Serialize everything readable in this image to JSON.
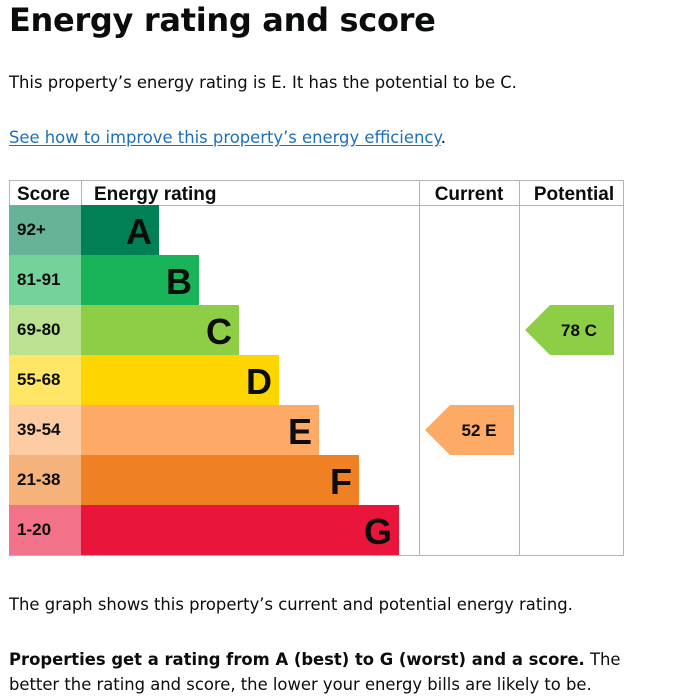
{
  "heading": "Energy rating and score",
  "intro": "This property’s energy rating is E. It has the potential to be C.",
  "link": {
    "text": "See how to improve this property’s energy efficiency",
    "after": "."
  },
  "graph_text": "The graph shows this property’s current and potential energy rating.",
  "ratings_note": {
    "bold": "Properties get a rating from A (best) to G (worst) and a score.",
    "rest": " The better the rating and score, the lower your energy bills are likely to be."
  },
  "chart_data": {
    "type": "table",
    "headers": {
      "score": "Score",
      "rating": "Energy rating",
      "current": "Current",
      "potential": "Potential"
    },
    "bands": [
      {
        "range": "92+",
        "letter": "A",
        "min": 92,
        "max": 100,
        "color": "#008054",
        "score_color": "#66b398"
      },
      {
        "range": "81-91",
        "letter": "B",
        "min": 81,
        "max": 91,
        "color": "#19b459",
        "score_color": "#75d29b"
      },
      {
        "range": "69-80",
        "letter": "C",
        "min": 69,
        "max": 80,
        "color": "#8dce46",
        "score_color": "#bbe290"
      },
      {
        "range": "55-68",
        "letter": "D",
        "min": 55,
        "max": 68,
        "color": "#ffd500",
        "score_color": "#ffe666"
      },
      {
        "range": "39-54",
        "letter": "E",
        "min": 39,
        "max": 54,
        "color": "#fcaa65",
        "score_color": "#fdcca3"
      },
      {
        "range": "21-38",
        "letter": "F",
        "min": 21,
        "max": 38,
        "color": "#ef8023",
        "score_color": "#f5b37b"
      },
      {
        "range": "1-20",
        "letter": "G",
        "min": 1,
        "max": 20,
        "color": "#e9153b",
        "score_color": "#f27389"
      }
    ],
    "current": {
      "score": 52,
      "letter": "E",
      "color": "#fcaa65"
    },
    "potential": {
      "score": 78,
      "letter": "C",
      "color": "#8dce46"
    }
  }
}
